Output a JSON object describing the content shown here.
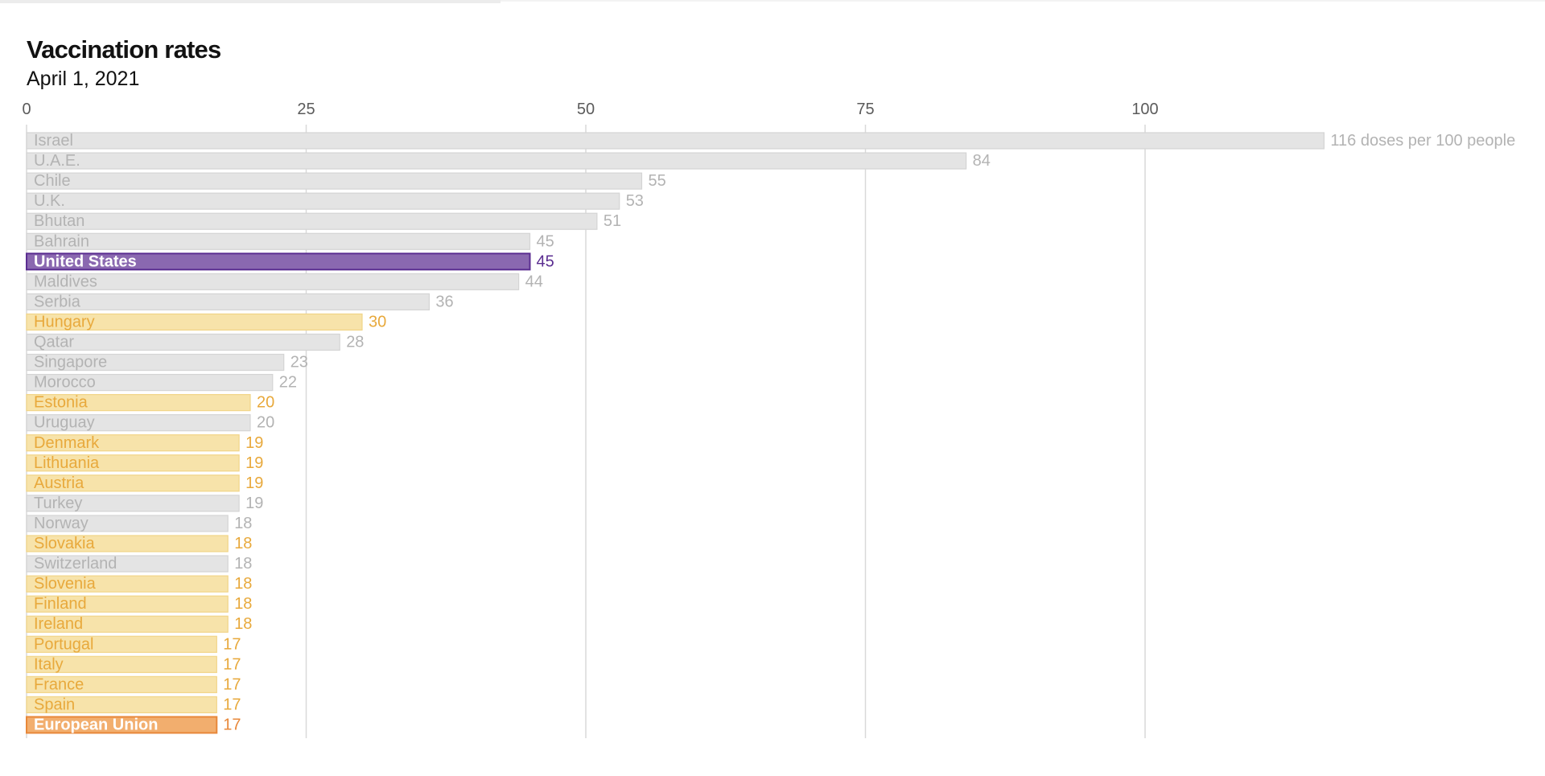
{
  "chart_data": {
    "type": "bar",
    "orientation": "horizontal",
    "title": "Vaccination rates",
    "subtitle": "April 1, 2021",
    "xlim": [
      0,
      116
    ],
    "xticks": [
      0,
      25,
      50,
      75,
      100
    ],
    "grid": true,
    "first_value_suffix": " doses per 100 people",
    "colors": {
      "default_fill": "#e4e4e4",
      "default_stroke": "#d4d4d4",
      "default_text": "#b3b3b3",
      "eu_fill": "#f7e3aa",
      "eu_stroke": "#f1d487",
      "eu_text": "#e8a93c",
      "us_fill": "#8a68b0",
      "us_stroke": "#5b2e91",
      "us_text": "#5b2e91",
      "eu_total_fill": "#f2ae6e",
      "eu_total_stroke": "#e8883a",
      "eu_total_text": "#e8883a",
      "gridline": "#d9d9d9"
    },
    "categories": [
      "Israel",
      "U.A.E.",
      "Chile",
      "U.K.",
      "Bhutan",
      "Bahrain",
      "United States",
      "Maldives",
      "Serbia",
      "Hungary",
      "Qatar",
      "Singapore",
      "Morocco",
      "Estonia",
      "Uruguay",
      "Denmark",
      "Lithuania",
      "Austria",
      "Turkey",
      "Norway",
      "Slovakia",
      "Switzerland",
      "Slovenia",
      "Finland",
      "Ireland",
      "Portugal",
      "Italy",
      "France",
      "Spain",
      "European Union"
    ],
    "values": [
      116,
      84,
      55,
      53,
      51,
      45,
      45,
      44,
      36,
      30,
      28,
      23,
      22,
      20,
      20,
      19,
      19,
      19,
      19,
      18,
      18,
      18,
      18,
      18,
      18,
      17,
      17,
      17,
      17,
      17
    ],
    "groups": [
      "other",
      "other",
      "other",
      "other",
      "other",
      "other",
      "us",
      "other",
      "other",
      "eu",
      "other",
      "other",
      "other",
      "eu",
      "other",
      "eu",
      "eu",
      "eu",
      "other",
      "other",
      "eu",
      "other",
      "eu",
      "eu",
      "eu",
      "eu",
      "eu",
      "eu",
      "eu",
      "eu_total"
    ]
  }
}
